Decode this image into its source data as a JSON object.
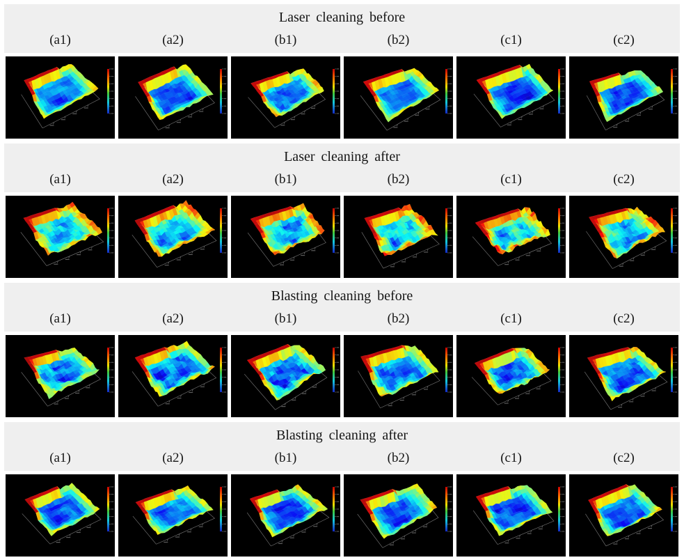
{
  "sections": [
    {
      "title": "Laser cleaning before",
      "labels": [
        "(a1)",
        "(a2)",
        "(b1)",
        "(b2)",
        "(c1)",
        "(c2)"
      ]
    },
    {
      "title": "Laser cleaning after",
      "labels": [
        "(a1)",
        "(a2)",
        "(b1)",
        "(b2)",
        "(c1)",
        "(c2)"
      ]
    },
    {
      "title": "Blasting cleaning before",
      "labels": [
        "(a1)",
        "(a2)",
        "(b1)",
        "(b2)",
        "(c1)",
        "(c2)"
      ]
    },
    {
      "title": "Blasting cleaning after",
      "labels": [
        "(a1)",
        "(a2)",
        "(b1)",
        "(b2)",
        "(c1)",
        "(c2)"
      ]
    }
  ],
  "style": {
    "header_band_color": "#efefef",
    "tile_background": "#000000",
    "plot_icon": "surface-plot-icon",
    "colormap": "jet"
  }
}
